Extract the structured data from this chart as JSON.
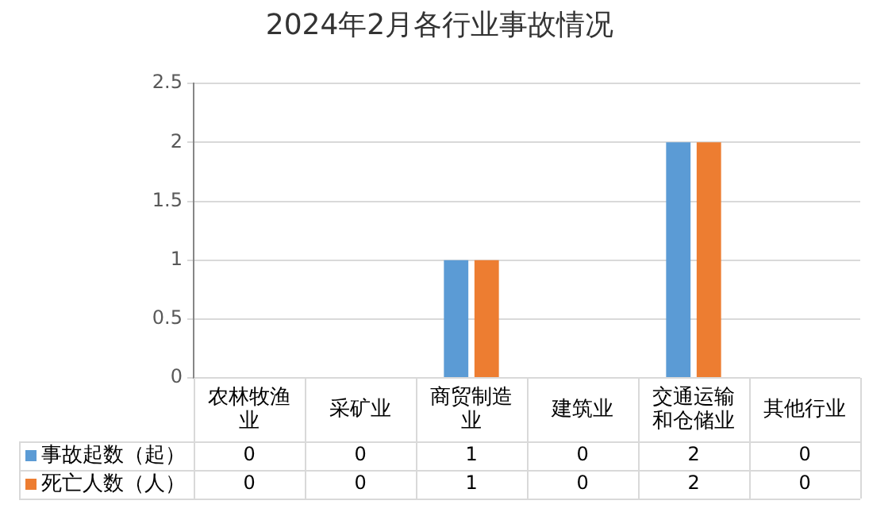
{
  "chart_data": {
    "type": "bar",
    "title": "2024年2月各行业事故情况",
    "categories": [
      "农林牧渔业",
      "采矿业",
      "商贸制造业",
      "建筑业",
      "交通运输和仓储业",
      "其他行业"
    ],
    "series": [
      {
        "name": "事故起数（起）",
        "color": "#5b9bd5",
        "values": [
          0,
          0,
          1,
          0,
          2,
          0
        ]
      },
      {
        "name": "死亡人数（人）",
        "color": "#ed7d31",
        "values": [
          0,
          0,
          1,
          0,
          2,
          0
        ]
      }
    ],
    "ylim": [
      0,
      2.5
    ],
    "yticks": [
      0,
      0.5,
      1,
      1.5,
      2,
      2.5
    ],
    "grid": "y",
    "legend": "bottom",
    "data_labels": true
  }
}
